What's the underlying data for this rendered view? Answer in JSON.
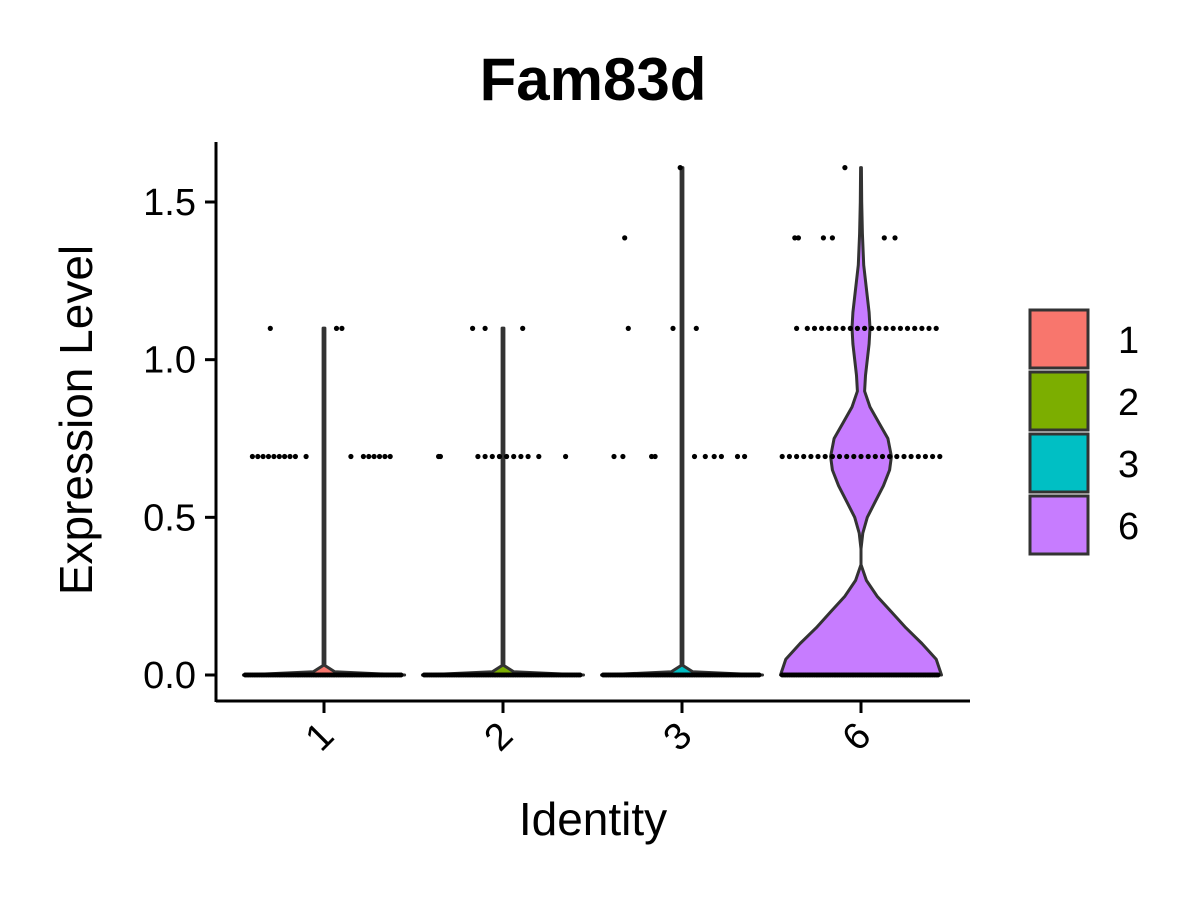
{
  "chart_data": {
    "type": "violin",
    "title": "Fam83d",
    "xlabel": "Identity",
    "ylabel": "Expression Level",
    "categories": [
      "1",
      "2",
      "3",
      "6"
    ],
    "ylim": [
      -0.08,
      1.7
    ],
    "yticks": [
      0.0,
      0.5,
      1.0,
      1.5
    ],
    "ytick_labels": [
      "0.0",
      "0.5",
      "1.0",
      "1.5"
    ],
    "xtick_rotation": 45,
    "grid": false,
    "legend": {
      "position": "right",
      "entries": [
        {
          "label": "1",
          "color": "#F8766D"
        },
        {
          "label": "2",
          "color": "#7CAE00"
        },
        {
          "label": "3",
          "color": "#00BFC4"
        },
        {
          "label": "6",
          "color": "#C77CFF"
        }
      ]
    },
    "series": [
      {
        "name": "1",
        "color": "#F8766D",
        "max": 1.1,
        "density": [
          [
            0,
            0.45
          ],
          [
            0.01,
            0.06
          ],
          [
            0.03,
            0.005
          ],
          [
            1.1,
            0.005
          ]
        ],
        "points": [
          {
            "y": 0.0,
            "offsets": [
              -0.44,
              -0.4,
              -0.36,
              -0.32,
              -0.28,
              -0.24,
              -0.2,
              -0.16,
              -0.12,
              -0.08,
              -0.04,
              0,
              0.04,
              0.08,
              0.12,
              0.16,
              0.2,
              0.24,
              0.28,
              0.32,
              0.36,
              0.4,
              0.44
            ]
          },
          {
            "y": 0.693,
            "offsets": [
              -0.4,
              -0.37,
              -0.34,
              -0.31,
              -0.28,
              -0.25,
              -0.22,
              -0.19,
              -0.16,
              -0.1,
              0.15,
              0.22,
              0.25,
              0.28,
              0.31,
              0.34,
              0.37
            ]
          },
          {
            "y": 1.099,
            "offsets": [
              -0.3,
              0.07,
              0.1
            ]
          }
        ]
      },
      {
        "name": "2",
        "color": "#7CAE00",
        "max": 1.1,
        "density": [
          [
            0,
            0.45
          ],
          [
            0.01,
            0.06
          ],
          [
            0.03,
            0.005
          ],
          [
            1.1,
            0.005
          ]
        ],
        "points": [
          {
            "y": 0.0,
            "offsets": [
              -0.44,
              -0.4,
              -0.36,
              -0.32,
              -0.28,
              -0.24,
              -0.2,
              -0.16,
              -0.12,
              -0.08,
              -0.04,
              0,
              0.04,
              0.08,
              0.12,
              0.16,
              0.2,
              0.24,
              0.28,
              0.32,
              0.36,
              0.4,
              0.44
            ]
          },
          {
            "y": 0.693,
            "offsets": [
              -0.36,
              -0.35,
              -0.14,
              -0.1,
              -0.06,
              -0.02,
              0.02,
              0.06,
              0.1,
              0.14,
              0.2,
              0.35
            ]
          },
          {
            "y": 1.099,
            "offsets": [
              -0.17,
              -0.1,
              0.11
            ]
          }
        ]
      },
      {
        "name": "3",
        "color": "#00BFC4",
        "max": 1.609,
        "density": [
          [
            0,
            0.45
          ],
          [
            0.01,
            0.06
          ],
          [
            0.03,
            0.005
          ],
          [
            1.609,
            0.005
          ]
        ],
        "points": [
          {
            "y": 0.0,
            "offsets": [
              -0.44,
              -0.4,
              -0.36,
              -0.32,
              -0.28,
              -0.24,
              -0.2,
              -0.16,
              -0.12,
              -0.08,
              -0.04,
              0,
              0.04,
              0.08,
              0.12,
              0.16,
              0.2,
              0.24,
              0.28,
              0.32,
              0.36,
              0.4,
              0.44
            ]
          },
          {
            "y": 0.693,
            "offsets": [
              -0.38,
              -0.33,
              -0.17,
              -0.15,
              0.07,
              0.13,
              0.18,
              0.22,
              0.31,
              0.35
            ]
          },
          {
            "y": 1.099,
            "offsets": [
              -0.3,
              -0.05,
              0.08
            ]
          },
          {
            "y": 1.386,
            "offsets": [
              -0.32
            ]
          },
          {
            "y": 1.609,
            "offsets": [
              -0.01
            ]
          }
        ]
      },
      {
        "name": "6",
        "color": "#C77CFF",
        "max": 1.609,
        "density": [
          [
            0,
            0.45
          ],
          [
            0.05,
            0.42
          ],
          [
            0.1,
            0.34
          ],
          [
            0.15,
            0.25
          ],
          [
            0.2,
            0.17
          ],
          [
            0.25,
            0.09
          ],
          [
            0.3,
            0.03
          ],
          [
            0.35,
            0.0
          ],
          [
            0.4,
            0.0
          ],
          [
            0.45,
            0.01
          ],
          [
            0.5,
            0.035
          ],
          [
            0.55,
            0.08
          ],
          [
            0.6,
            0.125
          ],
          [
            0.65,
            0.16
          ],
          [
            0.693,
            0.17
          ],
          [
            0.75,
            0.15
          ],
          [
            0.8,
            0.1
          ],
          [
            0.85,
            0.05
          ],
          [
            0.9,
            0.02
          ],
          [
            0.95,
            0.025
          ],
          [
            1.0,
            0.035
          ],
          [
            1.05,
            0.045
          ],
          [
            1.1,
            0.05
          ],
          [
            1.15,
            0.045
          ],
          [
            1.2,
            0.035
          ],
          [
            1.25,
            0.025
          ],
          [
            1.3,
            0.015
          ],
          [
            1.4,
            0.008
          ],
          [
            1.5,
            0.004
          ],
          [
            1.609,
            0.002
          ]
        ],
        "points": [
          {
            "y": 0.0,
            "offsets": [
              -0.44,
              -0.4,
              -0.36,
              -0.32,
              -0.28,
              -0.24,
              -0.2,
              -0.16,
              -0.12,
              -0.08,
              -0.04,
              0,
              0.04,
              0.08,
              0.12,
              0.16,
              0.2,
              0.24,
              0.28,
              0.32,
              0.36,
              0.4,
              0.44
            ]
          },
          {
            "y": 0.693,
            "offsets": [
              -0.44,
              -0.4,
              -0.36,
              -0.32,
              -0.28,
              -0.24,
              -0.2,
              -0.16,
              -0.12,
              -0.08,
              -0.04,
              0,
              0.04,
              0.08,
              0.12,
              0.16,
              0.2,
              0.24,
              0.28,
              0.32,
              0.36,
              0.4,
              0.44
            ]
          },
          {
            "y": 1.099,
            "offsets": [
              -0.36,
              -0.3,
              -0.26,
              -0.22,
              -0.18,
              -0.14,
              -0.1,
              -0.06,
              -0.02,
              0.02,
              0.06,
              0.1,
              0.14,
              0.18,
              0.22,
              0.26,
              0.3,
              0.34,
              0.38,
              0.42
            ]
          },
          {
            "y": 1.386,
            "offsets": [
              -0.37,
              -0.35,
              -0.21,
              -0.16,
              0.13,
              0.19
            ]
          },
          {
            "y": 1.609,
            "offsets": [
              -0.09
            ]
          }
        ]
      }
    ]
  }
}
